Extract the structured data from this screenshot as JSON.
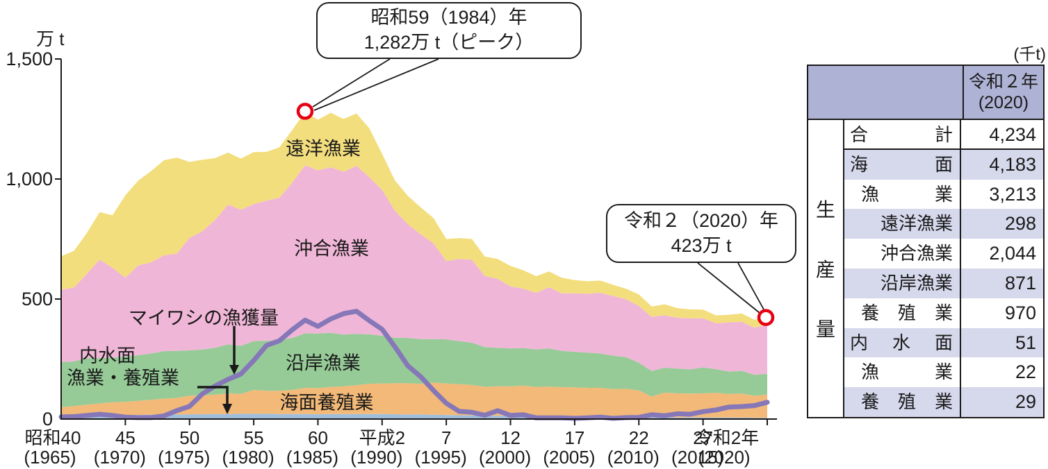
{
  "palette": {
    "distant_water": "#F3DE7D",
    "offshore": "#F0B6D7",
    "coastal": "#96CB98",
    "marine_aquaculture": "#F3B978",
    "inland": "#A0BEDC",
    "sardine_line": "#8678B8",
    "marker_red": "#E60012",
    "axis": "#1a1a1a",
    "table_header": "#AEB2D4",
    "table_stripe": "#D6D8EC"
  },
  "y_axis": {
    "unit": "万 t",
    "ticks": [
      {
        "label": "0",
        "value": 0
      },
      {
        "label": "500",
        "value": 500
      },
      {
        "label": "1,000",
        "value": 1000
      },
      {
        "label": "1,500",
        "value": 1500
      }
    ]
  },
  "x_axis": {
    "ticks": [
      {
        "era": "昭和40",
        "west": "(1965)",
        "year": 1965,
        "dx_era": -12,
        "dx_west": -16
      },
      {
        "era": "45",
        "west": "(1970)",
        "year": 1970
      },
      {
        "era": "50",
        "west": "(1975)",
        "year": 1975
      },
      {
        "era": "55",
        "west": "(1980)",
        "year": 1980
      },
      {
        "era": "60",
        "west": "(1985)",
        "year": 1985
      },
      {
        "era": "平成2",
        "west": "(1990)",
        "year": 1990
      },
      {
        "era": "7",
        "west": "(1995)",
        "year": 1995
      },
      {
        "era": "12",
        "west": "(2000)",
        "year": 2000
      },
      {
        "era": "17",
        "west": "(2005)",
        "year": 2005
      },
      {
        "era": "22",
        "west": "(2010)",
        "year": 2010
      },
      {
        "era": "27",
        "west": "(2015)",
        "year": 2015
      },
      {
        "era": "令和2年",
        "west": "(2020)",
        "year": 2020,
        "dx_era": -58,
        "dx_west": -62
      }
    ]
  },
  "chart_data": {
    "type": "area",
    "stacked": true,
    "ylim": [
      0,
      1500
    ],
    "unit": "万t",
    "years": [
      1965,
      1966,
      1967,
      1968,
      1969,
      1970,
      1971,
      1972,
      1973,
      1974,
      1975,
      1976,
      1977,
      1978,
      1979,
      1980,
      1981,
      1982,
      1983,
      1984,
      1985,
      1986,
      1987,
      1988,
      1989,
      1990,
      1991,
      1992,
      1993,
      1994,
      1995,
      1996,
      1997,
      1998,
      1999,
      2000,
      2001,
      2002,
      2003,
      2004,
      2005,
      2006,
      2007,
      2008,
      2009,
      2010,
      2011,
      2012,
      2013,
      2014,
      2015,
      2016,
      2017,
      2018,
      2019,
      2020
    ],
    "series": [
      {
        "id": "naisuimen",
        "name": "内水面漁業・養殖業",
        "label_line1": "内水面",
        "label_line2": "漁業・養殖業",
        "kind": "area",
        "color": "#A0BEDC",
        "values": [
          11,
          12,
          13,
          14,
          16,
          17,
          17,
          18,
          19,
          19,
          20,
          20,
          21,
          21,
          22,
          22,
          22,
          21,
          21,
          21,
          20,
          21,
          21,
          21,
          21,
          21,
          20,
          19,
          19,
          18,
          17,
          16,
          15,
          14,
          14,
          13,
          13,
          12,
          12,
          12,
          12,
          11,
          11,
          10,
          9,
          8,
          7,
          7,
          7,
          7,
          7,
          6,
          6,
          6,
          5,
          5
        ]
      },
      {
        "id": "kaimen_yoshoku",
        "name": "海面養殖業",
        "kind": "area",
        "color": "#F3B978",
        "values": [
          38,
          42,
          47,
          51,
          54,
          55,
          59,
          62,
          66,
          69,
          77,
          79,
          81,
          86,
          83,
          99,
          96,
          97,
          100,
          109,
          109,
          113,
          115,
          120,
          126,
          127,
          129,
          130,
          128,
          134,
          131,
          129,
          127,
          120,
          123,
          123,
          126,
          122,
          123,
          121,
          120,
          119,
          119,
          115,
          117,
          111,
          87,
          103,
          100,
          99,
          100,
          103,
          99,
          100,
          92,
          97
        ]
      },
      {
        "id": "engan",
        "name": "沿岸漁業",
        "kind": "area",
        "color": "#96CB98",
        "values": [
          189,
          186,
          194,
          189,
          186,
          189,
          190,
          193,
          198,
          196,
          189,
          191,
          195,
          204,
          200,
          204,
          208,
          212,
          217,
          227,
          227,
          225,
          216,
          214,
          206,
          199,
          190,
          189,
          186,
          181,
          184,
          180,
          176,
          166,
          160,
          158,
          157,
          156,
          159,
          151,
          148,
          147,
          143,
          139,
          132,
          116,
          106,
          104,
          103,
          101,
          108,
          99,
          93,
          95,
          87,
          87
        ]
      },
      {
        "id": "okiai",
        "name": "沖合漁業",
        "kind": "area",
        "color": "#F0B6D7",
        "values": [
          301,
          308,
          351,
          410,
          374,
          328,
          374,
          380,
          399,
          405,
          469,
          492,
          533,
          582,
          567,
          570,
          584,
          592,
          647,
          700,
          680,
          690,
          678,
          700,
          655,
          608,
          529,
          474,
          437,
          399,
          326,
          342,
          346,
          296,
          287,
          259,
          247,
          236,
          255,
          240,
          244,
          245,
          253,
          248,
          241,
          236,
          226,
          218,
          212,
          213,
          205,
          191,
          205,
          204,
          197,
          204
        ]
      },
      {
        "id": "enyo",
        "name": "遠洋漁業",
        "kind": "area",
        "color": "#F3DE7D",
        "values": [
          139,
          153,
          170,
          198,
          219,
          343,
          353,
          380,
          396,
          400,
          316,
          298,
          257,
          217,
          213,
          217,
          203,
          210,
          219,
          223,
          211,
          227,
          220,
          218,
          204,
          150,
          126,
          118,
          112,
          106,
          92,
          87,
          86,
          81,
          83,
          85,
          77,
          69,
          66,
          65,
          55,
          52,
          51,
          47,
          44,
          48,
          43,
          46,
          40,
          37,
          36,
          33,
          31,
          35,
          33,
          30
        ]
      },
      {
        "id": "maiwashi",
        "name": "マイワシの漁獲量",
        "kind": "line",
        "color": "#8678B8",
        "values": [
          9,
          10,
          15,
          20,
          15,
          8,
          6,
          6,
          13,
          35,
          53,
          105,
          138,
          165,
          188,
          244,
          307,
          326,
          372,
          412,
          386,
          417,
          439,
          449,
          410,
          374,
          301,
          222,
          177,
          119,
          66,
          32,
          28,
          16,
          35,
          15,
          18,
          5,
          5,
          5,
          3,
          5,
          8,
          3,
          6,
          7,
          18,
          14,
          22,
          20,
          31,
          38,
          50,
          52,
          56,
          70
        ]
      }
    ]
  },
  "annotations": {
    "peak": {
      "line1": "昭和59（1984）年",
      "line2": "1,282万 t（ピーク）",
      "year": 1984,
      "value": 1282
    },
    "r2": {
      "line1": "令和２（2020）年",
      "line2": "423万 t",
      "year": 2020,
      "value": 423
    }
  },
  "table": {
    "unit": "(千t)",
    "col_header_line1": "令和２年",
    "col_header_line2": "(2020)",
    "side_label": "生産量",
    "rows": [
      {
        "label": "合計",
        "value": "4,234",
        "level": 0,
        "justify": true
      },
      {
        "label": "海面",
        "value": "4,183",
        "level": 0,
        "justify": true
      },
      {
        "label": "漁業",
        "value": "3,213",
        "level": 1,
        "justify": true
      },
      {
        "label": "遠洋漁業",
        "value": "298",
        "level": 2,
        "justify": false
      },
      {
        "label": "沖合漁業",
        "value": "2,044",
        "level": 2,
        "justify": false
      },
      {
        "label": "沿岸漁業",
        "value": "871",
        "level": 2,
        "justify": false
      },
      {
        "label": "養殖業",
        "value": "970",
        "level": 1,
        "justify": true
      },
      {
        "label": "内水面",
        "value": "51",
        "level": 0,
        "justify": true
      },
      {
        "label": "漁業",
        "value": "22",
        "level": 1,
        "justify": true
      },
      {
        "label": "養殖業",
        "value": "29",
        "level": 1,
        "justify": true
      }
    ]
  }
}
